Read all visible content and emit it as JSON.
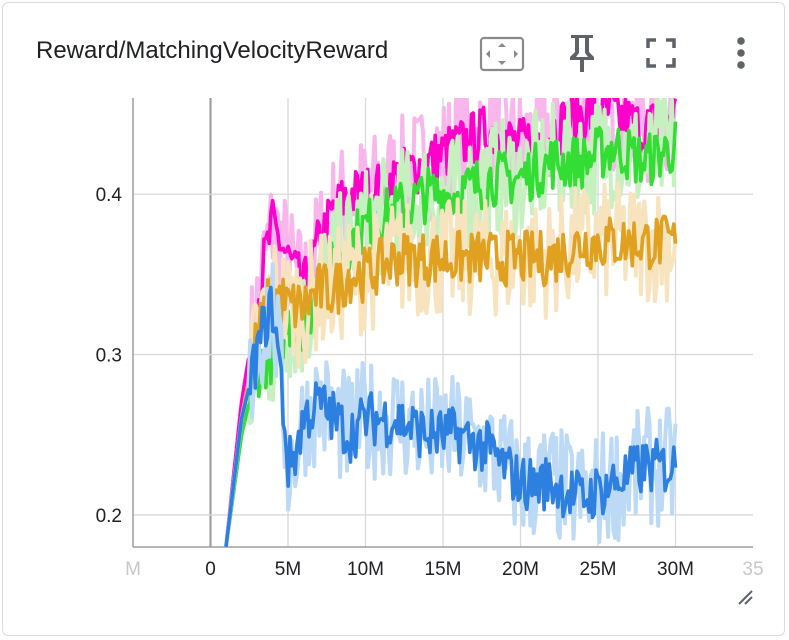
{
  "card": {
    "title": "Reward/MatchingVelocityReward"
  },
  "toolbar": [
    {
      "name": "fit-domain-icon",
      "tooltip": ""
    },
    {
      "name": "pin-icon",
      "tooltip": ""
    },
    {
      "name": "fullscreen-icon",
      "tooltip": ""
    },
    {
      "name": "more-vert-icon",
      "tooltip": ""
    }
  ],
  "colors": {
    "magenta": "#ff00cc",
    "magenta_light": "#f9b6ec",
    "green": "#33dd33",
    "green_light": "#c6f0c0",
    "orange": "#e0a020",
    "orange_light": "#f7e3bd",
    "blue": "#2d7fe0",
    "blue_light": "#bcd9f5",
    "grid": "#d9d9d9",
    "axis": "#9e9e9e"
  },
  "chart_data": {
    "type": "line",
    "title": "Reward/MatchingVelocityReward",
    "xlabel": "",
    "ylabel": "",
    "xlim": [
      -5000000,
      35000000
    ],
    "ylim": [
      0.18,
      0.46
    ],
    "x_ticks": [
      "M",
      "0",
      "5M",
      "10M",
      "15M",
      "20M",
      "25M",
      "30M",
      "35"
    ],
    "y_ticks": [
      "0.2",
      "0.3",
      "0.4"
    ],
    "grid": true,
    "series": [
      {
        "color_key": "magenta",
        "x": [
          1000000,
          2000000,
          3000000,
          3500000,
          4000000,
          4500000,
          5000000,
          6000000,
          7000000,
          8000000,
          9000000,
          10000000,
          12000000,
          14000000,
          16000000,
          18000000,
          20000000,
          22000000,
          24000000,
          26000000,
          28000000,
          30000000
        ],
        "y": [
          0.18,
          0.27,
          0.33,
          0.36,
          0.38,
          0.37,
          0.36,
          0.34,
          0.37,
          0.39,
          0.4,
          0.4,
          0.41,
          0.42,
          0.43,
          0.44,
          0.43,
          0.44,
          0.45,
          0.45,
          0.44,
          0.45
        ]
      },
      {
        "color_key": "green",
        "x": [
          1000000,
          2000000,
          3000000,
          4000000,
          5000000,
          6000000,
          7000000,
          8000000,
          9000000,
          10000000,
          12000000,
          14000000,
          16000000,
          18000000,
          20000000,
          22000000,
          24000000,
          26000000,
          28000000,
          30000000
        ],
        "y": [
          0.18,
          0.25,
          0.29,
          0.3,
          0.32,
          0.32,
          0.34,
          0.36,
          0.37,
          0.38,
          0.39,
          0.4,
          0.4,
          0.41,
          0.41,
          0.42,
          0.42,
          0.43,
          0.42,
          0.43
        ]
      },
      {
        "color_key": "orange",
        "x": [
          1000000,
          2000000,
          3000000,
          4000000,
          5000000,
          6000000,
          7000000,
          8000000,
          9000000,
          10000000,
          12000000,
          14000000,
          16000000,
          18000000,
          20000000,
          22000000,
          24000000,
          26000000,
          28000000,
          30000000
        ],
        "y": [
          0.18,
          0.26,
          0.31,
          0.34,
          0.33,
          0.33,
          0.34,
          0.34,
          0.35,
          0.35,
          0.36,
          0.36,
          0.36,
          0.36,
          0.36,
          0.36,
          0.37,
          0.37,
          0.37,
          0.37
        ]
      },
      {
        "color_key": "blue",
        "x": [
          1000000,
          2000000,
          3000000,
          3500000,
          4000000,
          4500000,
          5000000,
          5500000,
          6000000,
          7000000,
          8000000,
          9000000,
          10000000,
          12000000,
          14000000,
          16000000,
          18000000,
          20000000,
          22000000,
          24000000,
          26000000,
          28000000,
          30000000
        ],
        "y": [
          0.18,
          0.26,
          0.3,
          0.32,
          0.33,
          0.29,
          0.23,
          0.24,
          0.26,
          0.27,
          0.26,
          0.25,
          0.26,
          0.26,
          0.25,
          0.25,
          0.24,
          0.22,
          0.22,
          0.21,
          0.22,
          0.23,
          0.23
        ]
      }
    ]
  }
}
